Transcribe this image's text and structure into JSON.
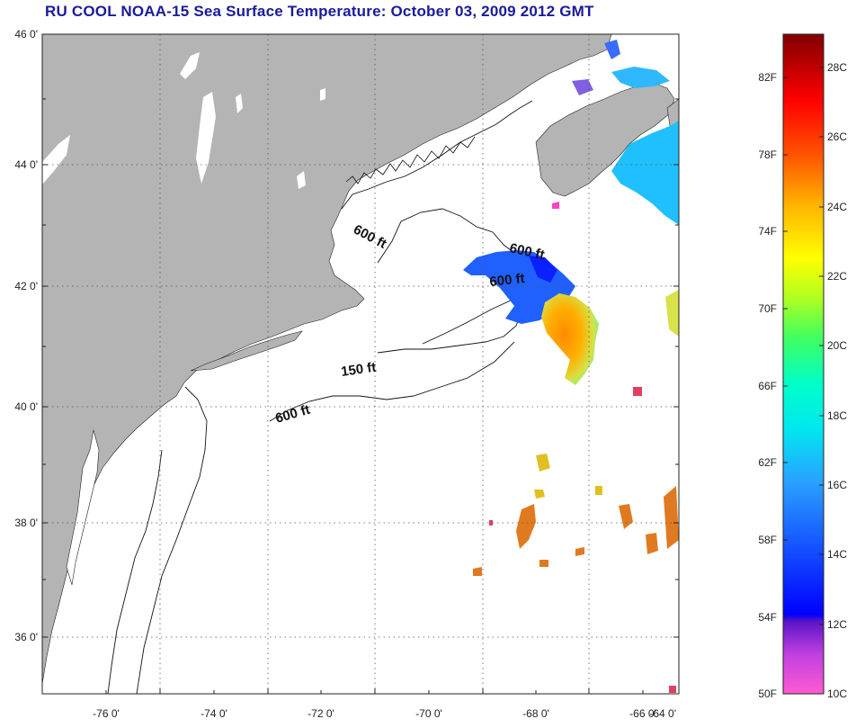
{
  "title": "RU COOL  NOAA-15  Sea Surface Temperature:  October 03, 2009 2012 GMT",
  "map": {
    "lat_labels": [
      "46 0'",
      "44 0'",
      "42 0'",
      "40 0'",
      "38 0'",
      "36 0'"
    ],
    "lon_labels": [
      "-76 0'",
      "-74 0'",
      "-72 0'",
      "-70 0'",
      "-68 0'",
      "-66 0'",
      "-64 0'"
    ],
    "contour_labels": [
      "600 ft",
      "600 ft",
      "600 ft",
      "150 ft",
      "600 ft"
    ],
    "colors": {
      "land": "#b4b4b4",
      "ocean": "#ffffff",
      "grid": "#555555",
      "title": "#1a1a9c"
    }
  },
  "colorbar": {
    "fahrenheit_labels": [
      "82F",
      "78F",
      "74F",
      "70F",
      "66F",
      "62F",
      "58F",
      "54F",
      "50F"
    ],
    "celsius_labels": [
      "28C",
      "26C",
      "24C",
      "22C",
      "20C",
      "18C",
      "16C",
      "14C",
      "12C",
      "10C"
    ],
    "range_c": [
      10,
      29
    ]
  }
}
